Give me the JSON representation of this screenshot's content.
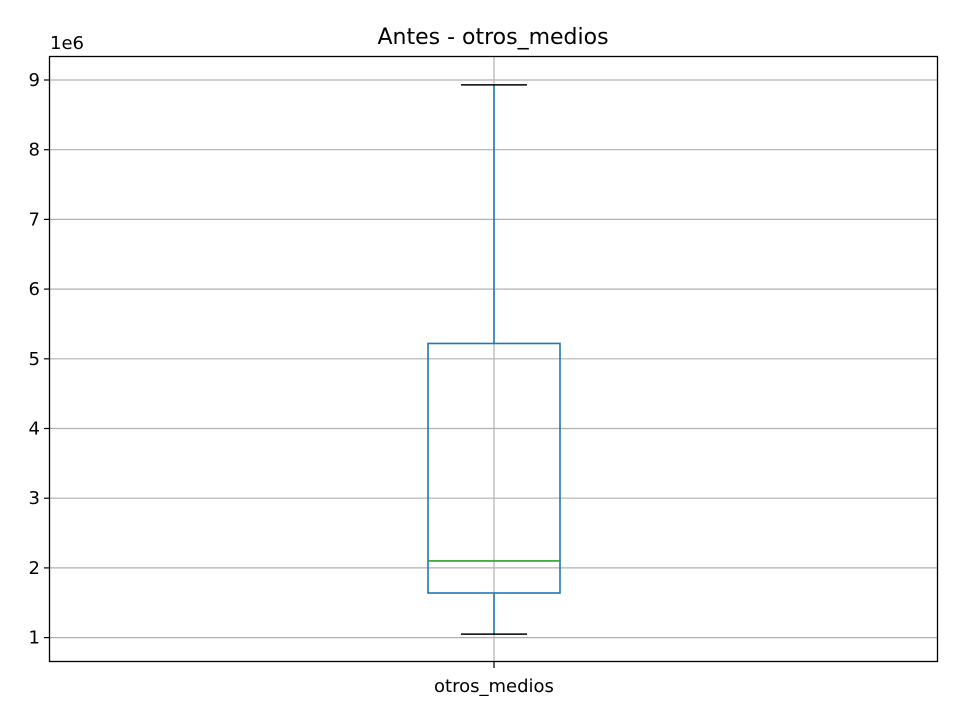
{
  "chart_data": {
    "type": "box",
    "title": "Antes - otros_medios",
    "xlabel": "",
    "ylabel": "",
    "y_exponent_label": "1e6",
    "y_scale_factor": 1000000,
    "ylim": [
      650000,
      9330000
    ],
    "y_ticks": [
      1000000,
      2000000,
      3000000,
      4000000,
      5000000,
      6000000,
      7000000,
      8000000,
      9000000
    ],
    "y_tick_labels": [
      "1",
      "2",
      "3",
      "4",
      "5",
      "6",
      "7",
      "8",
      "9"
    ],
    "categories": [
      "otros_medios"
    ],
    "boxes": [
      {
        "category": "otros_medios",
        "whisker_low": 1050000,
        "q1": 1640000,
        "median": 2100000,
        "q3": 5220000,
        "whisker_high": 8930000
      }
    ],
    "grid": true,
    "colors": {
      "box": "#1f77b4",
      "median": "#2ca02c",
      "caps": "#000000",
      "grid": "#b0b0b0"
    }
  }
}
